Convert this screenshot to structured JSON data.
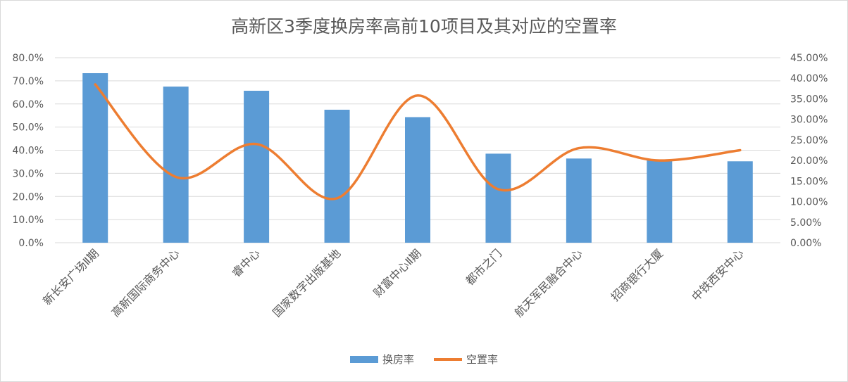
{
  "chart_data": {
    "type": "bar",
    "title": "高新区3季度换房率高前10项目及其对应的空置率",
    "categories": [
      "新长安广场Ⅱ期",
      "高新国际商务中心",
      "睿中心",
      "国家数字出版基地",
      "财富中心Ⅱ期",
      "都市之门",
      "航天军民融合中心",
      "招商银行大厦",
      "中铁西安中心"
    ],
    "series": [
      {
        "name": "换房率",
        "type": "bar",
        "axis": "left",
        "color": "#5b9bd5",
        "values": [
          73.3,
          67.5,
          65.7,
          57.5,
          54.3,
          38.5,
          36.4,
          35.6,
          35.2
        ]
      },
      {
        "name": "空置率",
        "type": "line",
        "axis": "right",
        "color": "#ed7d31",
        "values": [
          38.5,
          16.0,
          24.0,
          10.8,
          35.8,
          13.0,
          23.0,
          20.0,
          22.5
        ]
      }
    ],
    "y_left": {
      "min": 0,
      "max": 80,
      "step": 10,
      "tick_labels": [
        "0.0%",
        "10.0%",
        "20.0%",
        "30.0%",
        "40.0%",
        "50.0%",
        "60.0%",
        "70.0%",
        "80.0%"
      ]
    },
    "y_right": {
      "min": 0,
      "max": 45,
      "step": 5,
      "tick_labels": [
        "0.00%",
        "5.00%",
        "10.00%",
        "15.00%",
        "20.00%",
        "25.00%",
        "30.00%",
        "35.00%",
        "40.00%",
        "45.00%"
      ]
    },
    "grid": true,
    "legend_position": "bottom"
  },
  "colors": {
    "bar": "#5b9bd5",
    "line": "#ed7d31",
    "grid": "#d9d9d9",
    "text": "#595959"
  }
}
